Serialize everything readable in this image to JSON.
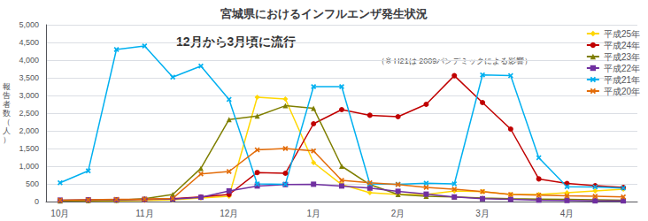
{
  "chart_data": {
    "type": "line",
    "title": "宮城県におけるインフルエンザ発生状況",
    "subtitle": "12月から3月頃に流行",
    "annotations": [
      "（※ H21は 2009パンデミックによる影響）"
    ],
    "ylabel": "報告者数（人）",
    "categories": [
      "10月",
      null,
      null,
      "11月",
      null,
      null,
      "12月",
      null,
      null,
      "1月",
      null,
      null,
      "2月",
      null,
      null,
      "3月",
      null,
      null,
      "4月",
      null,
      null
    ],
    "series": [
      {
        "name": "平成25年",
        "color": "#FFD700",
        "marker": "diamond",
        "values": [
          20,
          20,
          20,
          30,
          50,
          100,
          150,
          2950,
          2900,
          1100,
          480,
          250,
          200,
          200,
          300,
          280,
          200,
          200,
          250,
          300,
          350
        ]
      },
      {
        "name": "平成24年",
        "color": "#C00000",
        "marker": "circle",
        "values": [
          30,
          40,
          50,
          60,
          80,
          130,
          200,
          820,
          800,
          2200,
          2600,
          2440,
          2400,
          2750,
          3560,
          2800,
          2050,
          640,
          510,
          450,
          400
        ]
      },
      {
        "name": "平成23年",
        "color": "#7F7F00",
        "marker": "triangle",
        "values": [
          20,
          30,
          40,
          80,
          200,
          940,
          2320,
          2420,
          2710,
          2640,
          1000,
          480,
          200,
          150,
          130,
          100,
          80,
          70,
          60,
          50,
          40
        ]
      },
      {
        "name": "平成22年",
        "color": "#7030A0",
        "marker": "square",
        "values": [
          40,
          50,
          50,
          60,
          70,
          120,
          300,
          440,
          480,
          490,
          440,
          380,
          290,
          210,
          130,
          80,
          60,
          40,
          30,
          20,
          20
        ]
      },
      {
        "name": "平成21年",
        "color": "#00B0F0",
        "marker": "x",
        "values": [
          530,
          870,
          4300,
          4400,
          3520,
          3830,
          2890,
          500,
          490,
          3250,
          3250,
          500,
          490,
          520,
          500,
          3580,
          3560,
          1240,
          420,
          410,
          380
        ]
      },
      {
        "name": "平成20年",
        "color": "#E36C09",
        "marker": "x",
        "values": [
          40,
          50,
          60,
          70,
          90,
          780,
          850,
          1460,
          1500,
          1430,
          600,
          530,
          480,
          400,
          350,
          280,
          200,
          180,
          160,
          150,
          130
        ]
      }
    ],
    "ylim": [
      0,
      5000
    ],
    "yticks": [
      0,
      500,
      {
        "value": 1000,
        "label": "1,000"
      },
      {
        "value": 1500,
        "label": "1,500"
      },
      {
        "value": 2000,
        "label": "2,000"
      },
      {
        "value": 2500,
        "label": "2,500"
      },
      {
        "value": 3000,
        "label": "3,000"
      },
      {
        "value": 3500,
        "label": "3,500"
      },
      {
        "value": 4000,
        "label": "4,000"
      },
      {
        "value": 4500,
        "label": "4,500"
      },
      {
        "value": 5000,
        "label": "5,000"
      }
    ],
    "grid": true,
    "legend": "upper right"
  }
}
